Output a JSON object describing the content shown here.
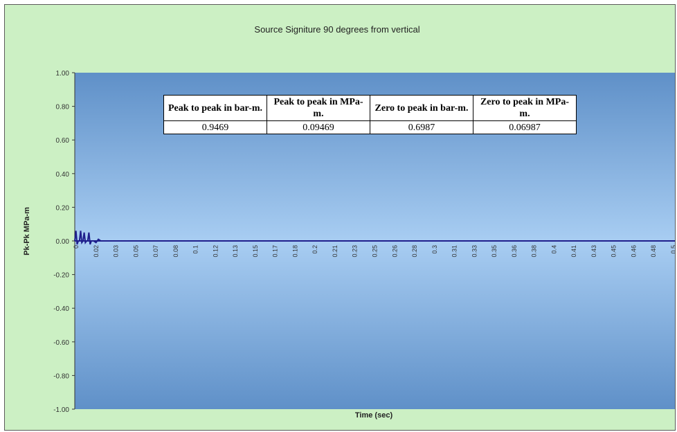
{
  "chart_data": {
    "type": "line",
    "title": "Source Signiture 90 degrees from vertical",
    "xlabel": "Time (sec)",
    "ylabel": "Pk-Pk MPa-m",
    "ylim": [
      -1.0,
      1.0
    ],
    "y_ticks": [
      "1.00",
      "0.80",
      "0.60",
      "0.40",
      "0.20",
      "0.00",
      "-0.20",
      "-0.40",
      "-0.60",
      "-0.80",
      "-1.00"
    ],
    "x_ticks": [
      "0",
      "0.02",
      "0.03",
      "0.05",
      "0.07",
      "0.08",
      "0.1",
      "0.12",
      "0.13",
      "0.15",
      "0.17",
      "0.18",
      "0.2",
      "0.21",
      "0.23",
      "0.25",
      "0.26",
      "0.28",
      "0.3",
      "0.31",
      "0.33",
      "0.35",
      "0.36",
      "0.38",
      "0.4",
      "0.41",
      "0.43",
      "0.45",
      "0.46",
      "0.48",
      "0.5"
    ],
    "xlim": [
      0,
      0.51
    ],
    "grid": false,
    "legend": "none",
    "series": [
      {
        "color": "#1f1f8c",
        "x": [
          0,
          0.001,
          0.002,
          0.003,
          0.004,
          0.005,
          0.006,
          0.007,
          0.008,
          0.009,
          0.01,
          0.011,
          0.012,
          0.013,
          0.014,
          0.015,
          0.016,
          0.018,
          0.02,
          0.022,
          0.025,
          0.03,
          0.05,
          0.1,
          0.2,
          0.3,
          0.4,
          0.5,
          0.51
        ],
        "y": [
          0.0,
          0.06,
          -0.02,
          0.0,
          0.0,
          0.06,
          -0.01,
          0.0,
          0.05,
          -0.01,
          0.0,
          0.0,
          0.05,
          -0.02,
          0.0,
          0.0,
          0.0,
          -0.01,
          0.01,
          0.0,
          0.0,
          0.0,
          0.0,
          0.0,
          0.0,
          0.0,
          0.0,
          0.0,
          0.0
        ]
      }
    ]
  },
  "table": {
    "headers": [
      "Peak to peak in bar-m.",
      "Peak to peak in MPa-m.",
      "Zero to peak in bar-m.",
      "Zero to peak in MPa-m."
    ],
    "values": [
      "0.9469",
      "0.09469",
      "0.6987",
      "0.06987"
    ]
  },
  "colors": {
    "frame_bg": "#ccf0c4",
    "plot_top": "#5f90c8",
    "plot_mid": "#a8cdf2",
    "plot_bottom": "#5f90c8",
    "line": "#1f1f8c"
  }
}
